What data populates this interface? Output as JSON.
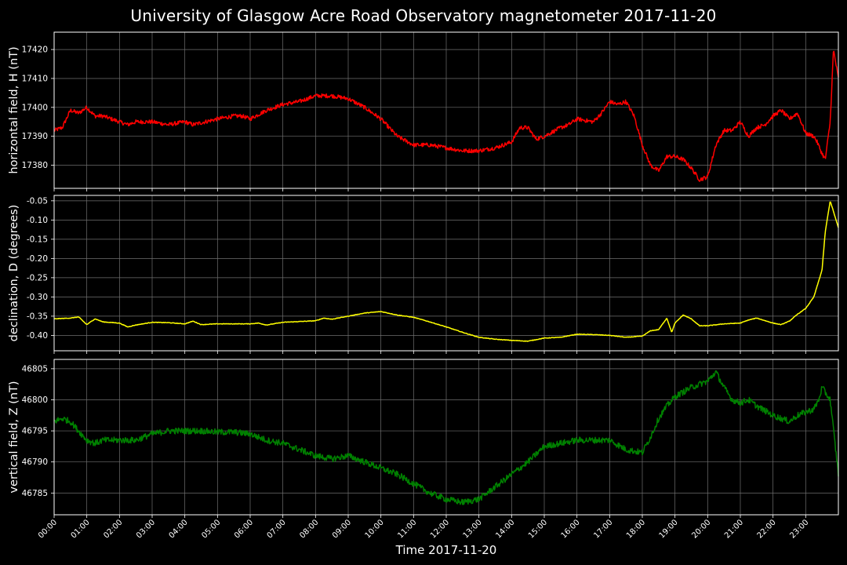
{
  "chart_data": {
    "title": "University of Glasgow Acre Road Observatory magnetometer 2017-11-20",
    "xlabel": "Time 2017-11-20",
    "x_ticks": [
      "00:00",
      "01:00",
      "02:00",
      "03:00",
      "04:00",
      "05:00",
      "06:00",
      "07:00",
      "08:00",
      "09:00",
      "10:00",
      "11:00",
      "12:00",
      "13:00",
      "14:00",
      "15:00",
      "16:00",
      "17:00",
      "18:00",
      "19:00",
      "20:00",
      "21:00",
      "22:00",
      "23:00"
    ],
    "xlim_hours": [
      0,
      24
    ],
    "grid": true,
    "panels": [
      {
        "type": "line",
        "ylabel": "horizontal field, H (nT)",
        "color": "#ff0000",
        "ylim": [
          17372,
          17426
        ],
        "y_ticks": [
          17380,
          17390,
          17400,
          17410,
          17420
        ],
        "tick_decimals": 0,
        "noise": 0.7,
        "series": {
          "name": "",
          "x_hours": [
            0,
            0.25,
            0.5,
            0.75,
            1.0,
            1.25,
            1.5,
            1.75,
            2.0,
            2.25,
            2.5,
            3.0,
            3.5,
            4.0,
            4.25,
            5.0,
            5.5,
            5.75,
            6.0,
            6.5,
            7.0,
            7.5,
            8.0,
            8.25,
            8.5,
            9.0,
            9.5,
            10.0,
            10.25,
            10.5,
            11.0,
            11.5,
            12.0,
            12.5,
            13.0,
            13.5,
            14.0,
            14.25,
            14.5,
            14.75,
            15.0,
            15.5,
            15.75,
            16.0,
            16.5,
            16.75,
            17.0,
            17.25,
            17.5,
            17.75,
            18.0,
            18.25,
            18.5,
            18.75,
            19.0,
            19.25,
            19.5,
            19.75,
            20.0,
            20.25,
            20.5,
            20.75,
            21.0,
            21.25,
            21.5,
            21.75,
            22.0,
            22.25,
            22.5,
            22.75,
            23.0,
            23.25,
            23.35,
            23.5,
            23.6,
            23.75,
            23.85,
            24.0
          ],
          "y": [
            17392,
            17393,
            17399,
            17398,
            17400,
            17397,
            17397,
            17396,
            17395,
            17394,
            17395,
            17395,
            17394,
            17395,
            17394,
            17396,
            17397,
            17397,
            17396,
            17399,
            17401,
            17402,
            17404,
            17404,
            17404,
            17403,
            17400,
            17396,
            17393,
            17390,
            17387,
            17387,
            17386,
            17385,
            17385,
            17386,
            17388,
            17393,
            17393,
            17389,
            17390,
            17393,
            17394,
            17396,
            17395,
            17398,
            17402,
            17401,
            17402,
            17397,
            17387,
            17380,
            17378,
            17383,
            17383,
            17382,
            17379,
            17375,
            17376,
            17387,
            17392,
            17392,
            17395,
            17390,
            17393,
            17394,
            17397,
            17399,
            17396,
            17398,
            17391,
            17390,
            17388,
            17384,
            17382,
            17395,
            17420,
            17410
          ]
        }
      },
      {
        "type": "line",
        "ylabel": "declination, D (degrees)",
        "color": "#ffff00",
        "ylim": [
          -0.44,
          -0.036
        ],
        "y_ticks": [
          -0.4,
          -0.35,
          -0.3,
          -0.25,
          -0.2,
          -0.15,
          -0.1,
          -0.05
        ],
        "tick_decimals": 2,
        "noise": 0.0007,
        "series": {
          "name": "",
          "x_hours": [
            0,
            0.5,
            0.75,
            1.0,
            1.25,
            1.5,
            2.0,
            2.25,
            2.5,
            3.0,
            3.5,
            4.0,
            4.25,
            4.5,
            5.0,
            6.0,
            6.25,
            6.5,
            7.0,
            8.0,
            8.25,
            8.5,
            9.0,
            9.5,
            10.0,
            10.5,
            11.0,
            11.5,
            12.0,
            12.5,
            13.0,
            13.5,
            14.0,
            14.5,
            15.0,
            15.5,
            16.0,
            16.5,
            17.0,
            17.5,
            18.0,
            18.25,
            18.5,
            18.75,
            18.9,
            19.0,
            19.25,
            19.5,
            19.75,
            20.0,
            20.5,
            21.0,
            21.25,
            21.5,
            22.0,
            22.25,
            22.5,
            22.75,
            23.0,
            23.25,
            23.5,
            23.6,
            23.75,
            24.0
          ],
          "y": [
            -0.357,
            -0.355,
            -0.352,
            -0.372,
            -0.357,
            -0.365,
            -0.368,
            -0.378,
            -0.373,
            -0.366,
            -0.367,
            -0.37,
            -0.363,
            -0.372,
            -0.37,
            -0.37,
            -0.368,
            -0.373,
            -0.366,
            -0.362,
            -0.355,
            -0.358,
            -0.35,
            -0.342,
            -0.338,
            -0.347,
            -0.353,
            -0.365,
            -0.378,
            -0.392,
            -0.405,
            -0.41,
            -0.413,
            -0.415,
            -0.407,
            -0.405,
            -0.397,
            -0.398,
            -0.4,
            -0.405,
            -0.402,
            -0.388,
            -0.385,
            -0.355,
            -0.392,
            -0.368,
            -0.347,
            -0.357,
            -0.375,
            -0.375,
            -0.37,
            -0.368,
            -0.36,
            -0.355,
            -0.368,
            -0.372,
            -0.363,
            -0.345,
            -0.33,
            -0.3,
            -0.23,
            -0.13,
            -0.05,
            -0.12
          ]
        }
      },
      {
        "type": "line",
        "ylabel": "vertical field, Z (nT)",
        "color": "#008000",
        "ylim": [
          46781.5,
          46806.5
        ],
        "y_ticks": [
          46785,
          46790,
          46795,
          46800,
          46805
        ],
        "tick_decimals": 0,
        "noise": 0.5,
        "series": {
          "name": "",
          "x_hours": [
            0,
            0.25,
            0.5,
            0.75,
            1.0,
            1.25,
            1.5,
            2.0,
            2.5,
            3.0,
            3.5,
            4.0,
            4.5,
            5.0,
            5.5,
            6.0,
            6.5,
            7.0,
            7.5,
            8.0,
            8.5,
            9.0,
            9.5,
            10.0,
            10.5,
            11.0,
            11.5,
            12.0,
            12.5,
            13.0,
            13.5,
            14.0,
            14.5,
            15.0,
            15.5,
            16.0,
            16.5,
            17.0,
            17.5,
            18.0,
            18.25,
            18.5,
            18.75,
            19.0,
            19.5,
            20.0,
            20.25,
            20.5,
            20.75,
            21.0,
            21.25,
            21.5,
            22.0,
            22.25,
            22.5,
            22.75,
            23.0,
            23.25,
            23.4,
            23.5,
            23.75,
            24.0
          ],
          "y": [
            46796.5,
            46797,
            46796.5,
            46795,
            46793.5,
            46793,
            46793.5,
            46793.5,
            46793.5,
            46794.5,
            46795,
            46795,
            46795,
            46794.8,
            46794.8,
            46794.5,
            46793.5,
            46793,
            46792,
            46791,
            46790.5,
            46791,
            46790,
            46789,
            46788,
            46786.5,
            46785,
            46784,
            46783.5,
            46784,
            46786,
            46788,
            46790,
            46792.5,
            46793,
            46793.5,
            46793.5,
            46793.5,
            46792,
            46791.5,
            46794,
            46797,
            46799,
            46800.5,
            46802,
            46803,
            46804.5,
            46802,
            46800,
            46799.5,
            46800,
            46799,
            46797.5,
            46797,
            46796.5,
            46797.5,
            46798,
            46798.5,
            46800,
            46802,
            46800,
            46788
          ]
        }
      }
    ]
  }
}
